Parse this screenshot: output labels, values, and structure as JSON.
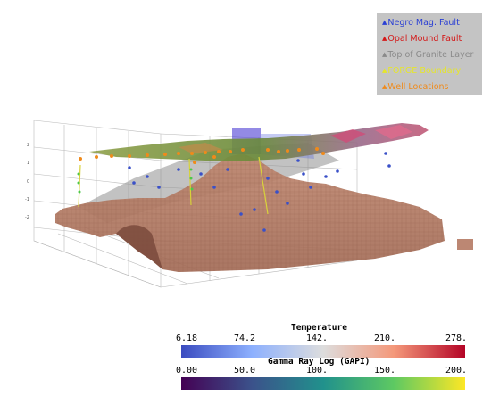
{
  "legend": {
    "items": [
      {
        "label": "Negro Mag. Fault",
        "color": "#2a3fd4"
      },
      {
        "label": "Opal Mound Fault",
        "color": "#d41818"
      },
      {
        "label": "Top of Granite Layer",
        "color": "#8a8a8a"
      },
      {
        "label": "FORGE Boundary",
        "color": "#e6e62a"
      },
      {
        "label": "Well Locations",
        "color": "#f08a1a"
      }
    ]
  },
  "axes": {
    "vertical_ticks": [
      "2",
      "1",
      "0",
      "-1",
      "-2"
    ]
  },
  "colorbars": {
    "temperature": {
      "title": "Temperature",
      "ticks": [
        "6.18",
        "74.2",
        "142.",
        "210.",
        "278."
      ],
      "colors": [
        "#3b4cc0",
        "#8db0fe",
        "#dddddd",
        "#f4987a",
        "#b40426"
      ]
    },
    "gamma": {
      "title": "Gamma Ray Log (GAPI)",
      "ticks": [
        "0.00",
        "50.0",
        "100.",
        "150.",
        "200."
      ],
      "colors": [
        "#440154",
        "#3b528b",
        "#21918c",
        "#5ec962",
        "#fde725"
      ]
    }
  }
}
